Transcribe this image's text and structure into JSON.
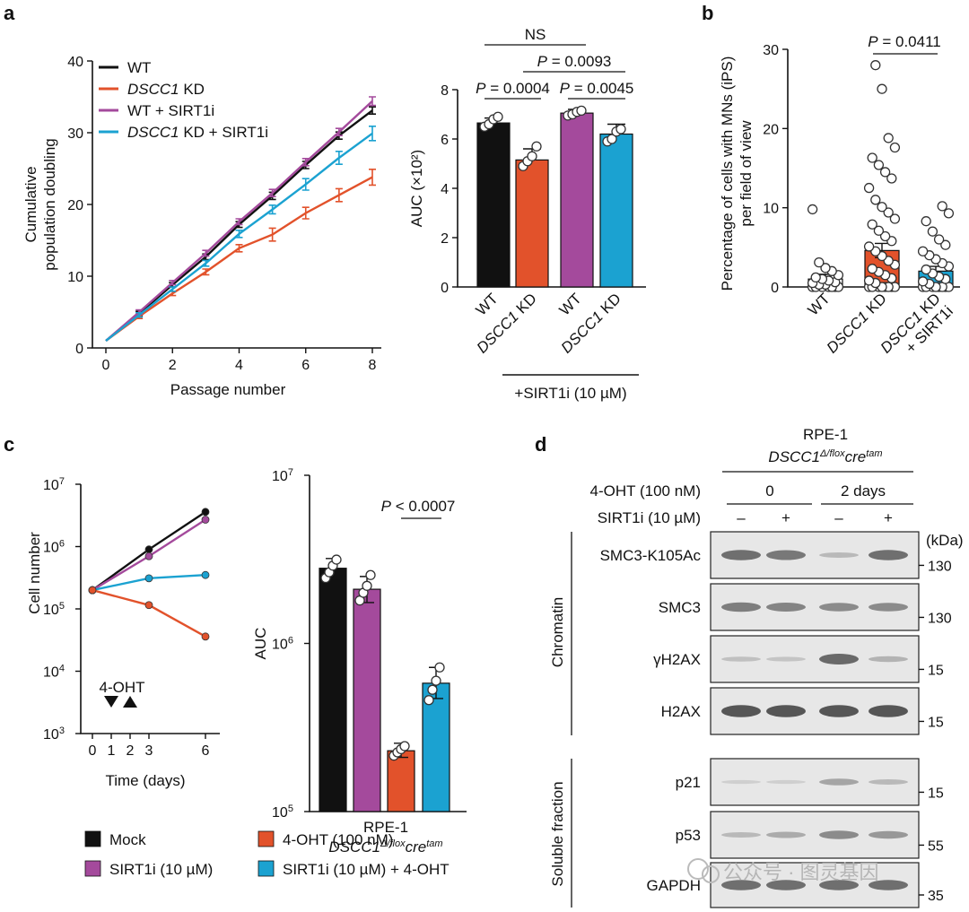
{
  "colors": {
    "black": "#111111",
    "orange": "#e2522b",
    "purple": "#a44a9c",
    "blue": "#1ba2d1"
  },
  "panel_labels": [
    "a",
    "b",
    "c",
    "d"
  ],
  "chart_data": [
    {
      "id": "a_left",
      "type": "line",
      "xlabel": "Passage number",
      "ylabel": "Cumulative population doubling",
      "xlim": [
        0,
        8
      ],
      "ylim": [
        0,
        40
      ],
      "xticks": [
        0,
        2,
        4,
        6,
        8
      ],
      "yticks": [
        0,
        10,
        20,
        30,
        40
      ],
      "x": [
        0,
        1,
        2,
        3,
        4,
        5,
        6,
        7,
        8
      ],
      "series": [
        {
          "name": "WT",
          "name_italic": "",
          "name_suffix": "WT",
          "color": "black",
          "values": [
            1,
            4.8,
            8.8,
            12.7,
            17.2,
            21.2,
            25.5,
            29.6,
            33.1
          ],
          "errors": [
            0,
            0.3,
            0.3,
            0.4,
            0.4,
            0.5,
            0.5,
            0.5,
            0.5
          ]
        },
        {
          "name": "DSCC1 KD",
          "name_italic": "DSCC1",
          "name_suffix": " KD",
          "color": "orange",
          "values": [
            1,
            4.4,
            7.6,
            10.6,
            13.9,
            15.8,
            18.8,
            21.3,
            23.8
          ],
          "errors": [
            0,
            0.3,
            0.3,
            0.4,
            0.5,
            0.9,
            0.8,
            0.9,
            1.1
          ]
        },
        {
          "name": "WT + SIRT1i",
          "name_italic": "",
          "name_suffix": "WT + SIRT1i",
          "color": "purple",
          "values": [
            1,
            5.0,
            9.1,
            13.2,
            17.6,
            21.6,
            25.9,
            30.1,
            34.4
          ],
          "errors": [
            0,
            0.3,
            0.3,
            0.4,
            0.4,
            0.5,
            0.5,
            0.5,
            0.6
          ]
        },
        {
          "name": "DSCC1 KD + SIRT1i",
          "name_italic": "DSCC1",
          "name_suffix": " KD + SIRT1i",
          "color": "blue",
          "values": [
            1,
            4.6,
            8.2,
            11.8,
            15.9,
            19.3,
            22.8,
            26.5,
            29.9
          ],
          "errors": [
            0,
            0.3,
            0.3,
            0.4,
            0.5,
            0.6,
            0.8,
            0.9,
            1.0
          ]
        }
      ]
    },
    {
      "id": "a_right",
      "type": "bar",
      "ylabel": "AUC (×10²)",
      "ylim": [
        0,
        8
      ],
      "yticks": [
        0,
        2,
        4,
        6,
        8
      ],
      "categories": [
        "WT",
        "DSCC1 KD",
        "WT",
        "DSCC1 KD"
      ],
      "category_italic": [
        false,
        true,
        false,
        true
      ],
      "colors": [
        "black",
        "orange",
        "purple",
        "blue"
      ],
      "values": [
        6.65,
        5.15,
        7.05,
        6.2
      ],
      "errors": [
        0.2,
        0.45,
        0.15,
        0.4
      ],
      "points": [
        [
          6.5,
          6.6,
          6.8,
          6.9
        ],
        [
          4.9,
          5.1,
          5.3,
          5.7
        ],
        [
          6.95,
          7.0,
          7.1,
          7.15
        ],
        [
          5.9,
          6.0,
          6.3,
          6.4
        ]
      ],
      "group_label": "+SIRT1i (10 µM)",
      "annotations": [
        {
          "text": "NS",
          "from": 0,
          "to": 2,
          "level": 0
        },
        {
          "text": "P = 0.0093",
          "from": 1,
          "to": 3,
          "level": 1
        },
        {
          "text": "P = 0.0004",
          "from": 0,
          "to": 1,
          "level": 2
        },
        {
          "text": "P = 0.0045",
          "from": 2,
          "to": 3,
          "level": 2
        }
      ]
    },
    {
      "id": "b",
      "type": "bar",
      "ylabel": "Percentage of cells with MNs (iPS) per field of view",
      "ylim": [
        0,
        30
      ],
      "yticks": [
        0,
        10,
        20,
        30
      ],
      "categories": [
        "WT",
        "DSCC1 KD",
        "DSCC1 KD + SIRT1i"
      ],
      "colors": [
        "white",
        "orange",
        "blue"
      ],
      "values": [
        1.0,
        4.6,
        2.0
      ],
      "errors": [
        0.6,
        0.9,
        0.6
      ],
      "points": [
        [
          0,
          0,
          0,
          0,
          0,
          0,
          0,
          0.3,
          0.3,
          0.5,
          0.6,
          0.8,
          1.0,
          1.2,
          1.5,
          2.0,
          2.4,
          3.1,
          9.8
        ],
        [
          0,
          0,
          0,
          0,
          0,
          0,
          0,
          0,
          0.5,
          0.8,
          1.1,
          1.5,
          1.9,
          2.3,
          2.8,
          3.3,
          3.9,
          4.5,
          5.1,
          5.8,
          6.4,
          7.1,
          7.9,
          8.6,
          9.4,
          10.1,
          11.0,
          12.5,
          13.7,
          14.5,
          15.4,
          16.3,
          17.6,
          18.8,
          25.0,
          28.0
        ],
        [
          0,
          0,
          0,
          0,
          0,
          0,
          0,
          0,
          0.4,
          0.7,
          1.0,
          1.3,
          1.7,
          2.2,
          2.6,
          3.0,
          3.5,
          4.0,
          4.5,
          5.3,
          6.0,
          7.0,
          8.3,
          9.3,
          10.2
        ]
      ],
      "annotations": [
        {
          "text": "P = 0.0411",
          "from": 1,
          "to": 2
        }
      ]
    },
    {
      "id": "c_left",
      "type": "line",
      "yscale": "log",
      "xlabel": "Time (days)",
      "ylabel": "Cell number",
      "xlim": [
        0,
        6
      ],
      "xticks": [
        0,
        1,
        2,
        3,
        6
      ],
      "ylim_exp": [
        3,
        7
      ],
      "ytick_labels": [
        "10",
        "10",
        "10",
        "10",
        "10"
      ],
      "ytick_exps": [
        "3",
        "4",
        "5",
        "6",
        "7"
      ],
      "treatment_label": "4-OHT",
      "treatment_days": [
        1,
        2
      ],
      "x": [
        0,
        3,
        6
      ],
      "series": [
        {
          "name": "Mock",
          "color": "black",
          "values": [
            200000,
            900000,
            3600000
          ]
        },
        {
          "name": "SIRT1i (10 µM)",
          "color": "purple",
          "values": [
            200000,
            700000,
            2700000
          ]
        },
        {
          "name": "SIRT1i (10 µM) + 4-OHT",
          "color": "blue",
          "values": [
            200000,
            310000,
            350000
          ]
        },
        {
          "name": "4-OHT (100 nM)",
          "color": "orange",
          "values": [
            200000,
            115000,
            36000
          ]
        }
      ]
    },
    {
      "id": "c_right",
      "type": "bar",
      "yscale": "log",
      "ylabel": "AUC",
      "ylim_exp": [
        5,
        7
      ],
      "ytick_labels": [
        "10",
        "10",
        "10"
      ],
      "ytick_exps": [
        "5",
        "6",
        "7"
      ],
      "colors": [
        "black",
        "purple",
        "orange",
        "blue"
      ],
      "values": [
        2800000,
        2100000,
        230000,
        580000
      ],
      "err_low": [
        2400000,
        1750000,
        210000,
        470000
      ],
      "err_high": [
        3200000,
        2500000,
        255000,
        720000
      ],
      "points": [
        [
          2450000,
          2650000,
          2900000,
          3150000
        ],
        [
          1800000,
          2000000,
          2200000,
          2550000
        ],
        [
          215000,
          225000,
          235000,
          245000
        ],
        [
          460000,
          530000,
          600000,
          720000
        ]
      ],
      "xlabel": "RPE-1",
      "xlabel2_italic": "DSCC1",
      "xlabel2_sup1": "Δ/flox",
      "xlabel2_mid": "cre",
      "xlabel2_sup2": "tam",
      "annotations": [
        {
          "text": "P < 0.0007",
          "from": 2,
          "to": 3
        }
      ]
    }
  ],
  "legend_c": [
    {
      "label": "Mock",
      "color": "black"
    },
    {
      "label": "4-OHT (100 nM)",
      "color": "orange"
    },
    {
      "label": "SIRT1i (10 µM)",
      "color": "purple"
    },
    {
      "label": "SIRT1i (10 µM) + 4-OHT",
      "color": "blue"
    }
  ],
  "blot": {
    "title": "RPE-1",
    "subtitle_italic": "DSCC1",
    "subtitle_sup1": "Δ/flox",
    "subtitle_mid": "cre",
    "subtitle_sup2": "tam",
    "row1_label": "4-OHT (100 nM)",
    "row1_groups": [
      "0",
      "2 days"
    ],
    "row2_label": "SIRT1i (10 µM)",
    "row2_marks": [
      "–",
      "+",
      "–",
      "+"
    ],
    "kda_label": "(kDa)",
    "chromatin_label": "Chromatin",
    "soluble_label": "Soluble fraction",
    "lanes": [
      {
        "label": "SMC3-K105Ac",
        "marker": "130",
        "intensity": [
          0.75,
          0.7,
          0.2,
          0.75
        ]
      },
      {
        "label": "SMC3",
        "marker": "130",
        "intensity": [
          0.65,
          0.6,
          0.55,
          0.55
        ]
      },
      {
        "label": "γH2AX",
        "marker": "15",
        "intensity": [
          0.15,
          0.12,
          0.8,
          0.25
        ]
      },
      {
        "label": "H2AX",
        "marker": "15",
        "intensity": [
          0.95,
          0.95,
          0.95,
          0.95
        ]
      },
      {
        "label": "p21",
        "marker": "15",
        "intensity": [
          0.03,
          0.03,
          0.35,
          0.2
        ]
      },
      {
        "label": "p53",
        "marker": "55",
        "intensity": [
          0.2,
          0.3,
          0.55,
          0.45
        ]
      },
      {
        "label": "GAPDH",
        "marker": "35",
        "intensity": [
          0.75,
          0.75,
          0.75,
          0.75
        ]
      }
    ]
  },
  "watermark": "公众号 · 图灵基因"
}
